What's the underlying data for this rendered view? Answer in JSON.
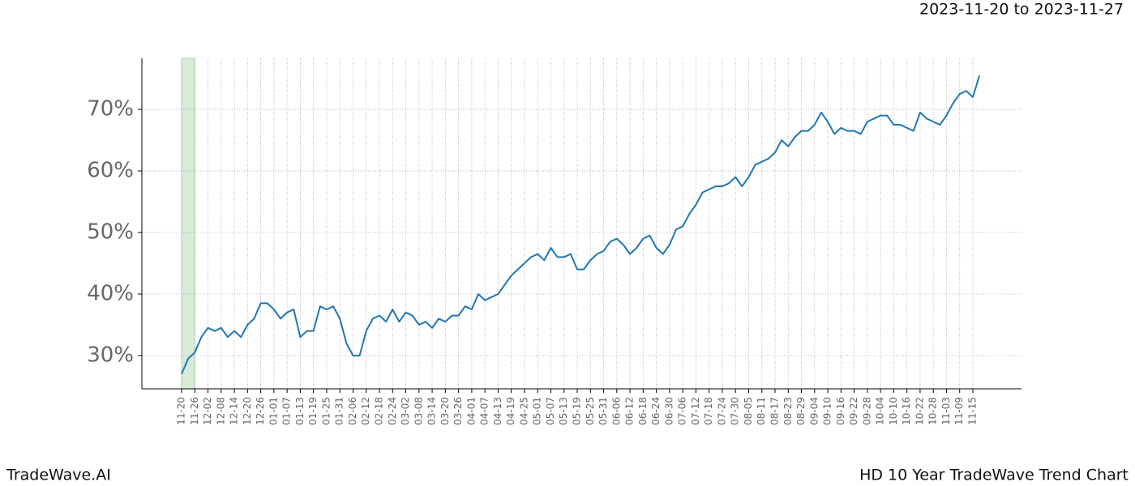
{
  "chart_data": {
    "type": "line",
    "title": "2023-11-20 to 2023-11-27",
    "footer_left": "TradeWave.AI",
    "footer_right": "HD 10 Year TradeWave Trend Chart",
    "categories": [
      "11-20",
      null,
      "11-26",
      null,
      "12-02",
      null,
      "12-08",
      null,
      "12-14",
      null,
      "12-20",
      null,
      "12-26",
      null,
      "01-01",
      null,
      "01-07",
      null,
      "01-13",
      null,
      "01-19",
      null,
      "01-25",
      null,
      "01-31",
      null,
      "02-06",
      null,
      "02-12",
      null,
      "02-18",
      null,
      "02-24",
      null,
      "03-02",
      null,
      "03-08",
      null,
      "03-14",
      null,
      "03-20",
      null,
      "03-26",
      null,
      "04-01",
      null,
      "04-07",
      null,
      "04-13",
      null,
      "04-19",
      null,
      "04-25",
      null,
      "05-01",
      null,
      "05-07",
      null,
      "05-13",
      null,
      "05-19",
      null,
      "05-25",
      null,
      "05-31",
      null,
      "06-06",
      null,
      "06-12",
      null,
      "06-18",
      null,
      "06-24",
      null,
      "06-30",
      null,
      "07-06",
      null,
      "07-12",
      null,
      "07-18",
      null,
      "07-24",
      null,
      "07-30",
      null,
      "08-05",
      null,
      "08-11",
      null,
      "08-17",
      null,
      "08-23",
      null,
      "08-29",
      null,
      "09-04",
      null,
      "09-10",
      null,
      "09-16",
      null,
      "09-22",
      null,
      "09-28",
      null,
      "10-04",
      null,
      "10-10",
      null,
      "10-16",
      null,
      "10-22",
      null,
      "10-28",
      null,
      "11-03",
      null,
      "11-09",
      null,
      "11-15",
      null
    ],
    "series": [
      {
        "color": "#1f77b4",
        "values": [
          27,
          29.5,
          30.5,
          33,
          34.5,
          34,
          34.5,
          33,
          34,
          33,
          35,
          36,
          38.5,
          38.5,
          37.5,
          36,
          37,
          37.5,
          33,
          34,
          34,
          38,
          37.5,
          38,
          36,
          32,
          30,
          30,
          34,
          36,
          36.5,
          35.5,
          37.5,
          35.5,
          37,
          36.5,
          35,
          35.5,
          34.5,
          36,
          35.5,
          36.5,
          36.5,
          38,
          37.5,
          40,
          39,
          39.5,
          40,
          41.5,
          43,
          44,
          45,
          46,
          46.5,
          45.5,
          47.5,
          46,
          46,
          46.5,
          44,
          44,
          45.5,
          46.5,
          47,
          48.5,
          49,
          48,
          46.5,
          47.5,
          49,
          49.5,
          47.5,
          46.5,
          48,
          50.5,
          51,
          53,
          54.5,
          56.5,
          57,
          57.5,
          57.5,
          58,
          59,
          57.5,
          59,
          61,
          61.5,
          62,
          63,
          65,
          64,
          65.5,
          66.5,
          66.5,
          67.5,
          69.5,
          68,
          66,
          67,
          66.5,
          66.5,
          66,
          68,
          68.5,
          69,
          69,
          67.5,
          67.5,
          67,
          66.5,
          69.5,
          68.5,
          68,
          67.5,
          69,
          71,
          72.5,
          73,
          72,
          75.5
        ]
      }
    ],
    "ylim": [
      24.6,
      78.3
    ],
    "yticks": [
      {
        "value": 30,
        "label": "30%"
      },
      {
        "value": 40,
        "label": "40%"
      },
      {
        "value": 50,
        "label": "50%"
      },
      {
        "value": 60,
        "label": "60%"
      },
      {
        "value": 70,
        "label": "70%"
      }
    ],
    "grid": true,
    "highlight": [
      "11-20",
      "11-26"
    ],
    "highlight_color": "#d8ead8"
  }
}
